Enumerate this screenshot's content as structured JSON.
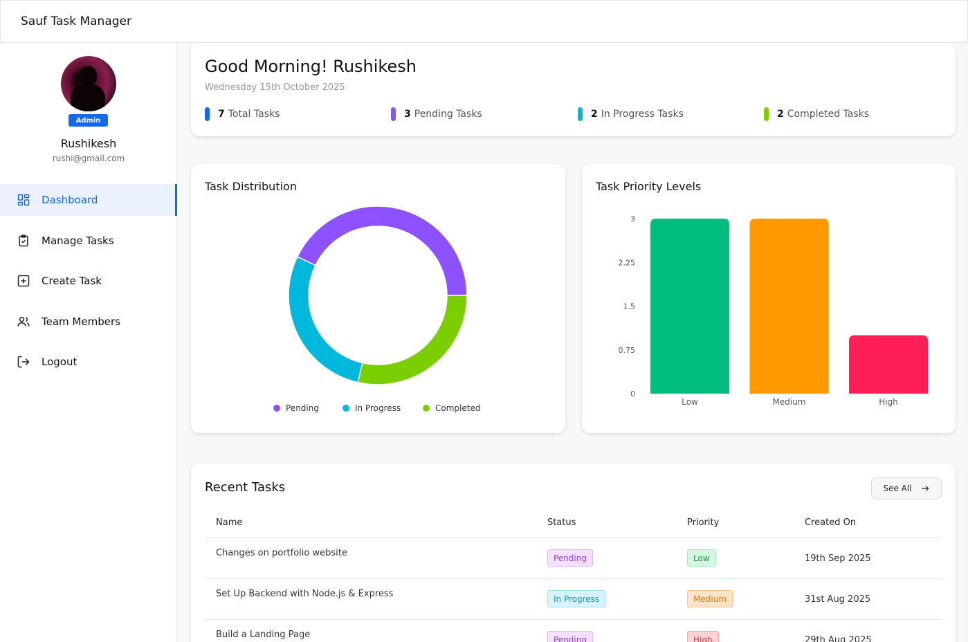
{
  "app": {
    "title": "Sauf Task Manager"
  },
  "user": {
    "name": "Rushikesh",
    "email": "rushi@gmail.com",
    "role": "Admin"
  },
  "sidebar": {
    "items": [
      {
        "label": "Dashboard",
        "icon": "dashboard-icon",
        "active": true
      },
      {
        "label": "Manage Tasks",
        "icon": "clipboard-check-icon",
        "active": false
      },
      {
        "label": "Create Task",
        "icon": "plus-square-icon",
        "active": false
      },
      {
        "label": "Team Members",
        "icon": "users-icon",
        "active": false
      },
      {
        "label": "Logout",
        "icon": "logout-icon",
        "active": false
      }
    ]
  },
  "greeting": {
    "title": "Good Morning! Rushikesh",
    "date": "Wednesday 15th October 2025",
    "stats": [
      {
        "count": "7",
        "label": "Total Tasks",
        "color": "#1368ec"
      },
      {
        "count": "3",
        "label": "Pending Tasks",
        "color": "#8d51ff"
      },
      {
        "count": "2",
        "label": "In Progress Tasks",
        "color": "#00b8db"
      },
      {
        "count": "2",
        "label": "Completed Tasks",
        "color": "#7bce00"
      }
    ]
  },
  "distribution": {
    "title": "Task Distribution"
  },
  "priority": {
    "title": "Task Priority Levels"
  },
  "chart_data": [
    {
      "type": "pie",
      "title": "Task Distribution",
      "donut": true,
      "labels": [
        "Pending",
        "In Progress",
        "Completed"
      ],
      "values": [
        3,
        2,
        2
      ],
      "colors": [
        "#8d51ff",
        "#00b8db",
        "#7bce00"
      ],
      "legend": "bottom"
    },
    {
      "type": "bar",
      "title": "Task Priority Levels",
      "categories": [
        "Low",
        "Medium",
        "High"
      ],
      "values": [
        3,
        3,
        1
      ],
      "colors": [
        "#00bc7d",
        "#fe9900",
        "#ff1f57"
      ],
      "ylim": [
        0,
        3
      ],
      "yticks": [
        "0",
        "0.75",
        "1.5",
        "2.25",
        "3"
      ],
      "grid": false
    }
  ],
  "recent": {
    "title": "Recent Tasks",
    "see_all": "See All",
    "columns": [
      "Name",
      "Status",
      "Priority",
      "Created On"
    ],
    "rows": [
      {
        "name": "Changes on portfolio website",
        "status": "Pending",
        "priority": "Low",
        "created": "19th Sep 2025"
      },
      {
        "name": "Set Up Backend with Node.js & Express",
        "status": "In Progress",
        "priority": "Medium",
        "created": "31st Aug 2025"
      },
      {
        "name": "Build a Landing Page",
        "status": "Pending",
        "priority": "High",
        "created": "29th Aug 2025"
      }
    ]
  }
}
